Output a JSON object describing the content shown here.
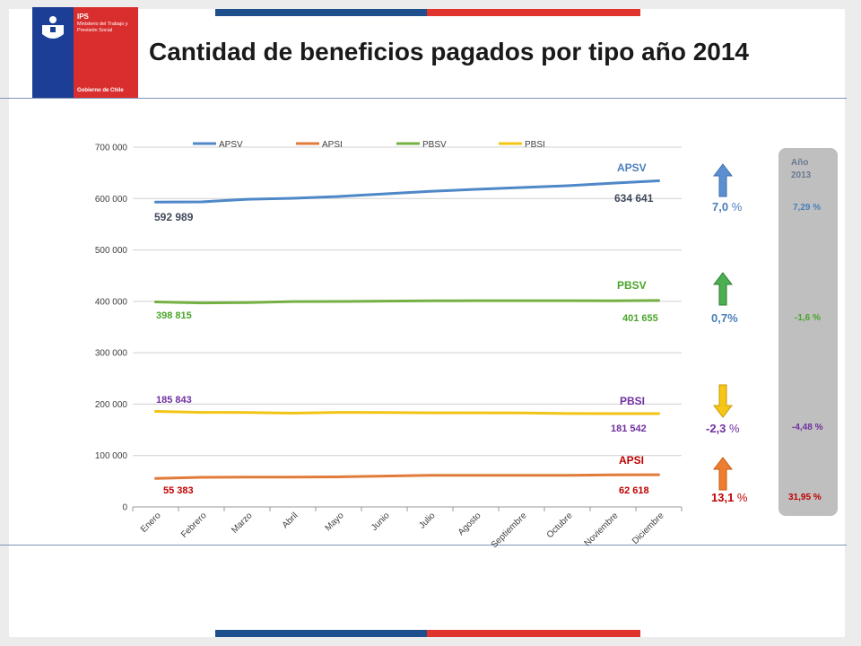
{
  "header": {
    "title": "Cantidad de beneficios pagados por tipo año 2014",
    "logo": {
      "ips": "IPS",
      "ministerio": "Ministerio del Trabajo y Previsión Social",
      "gobierno": "Gobierno de Chile"
    }
  },
  "colors": {
    "APSV": "#4f88c8",
    "APSI": "#e07b39",
    "PBSV": "#74b044",
    "PBSI": "#f2c414",
    "text_APSV": "#4a7ebb",
    "text_PBSV": "#4aa52a",
    "text_PBSI": "#7030a0",
    "text_APSI": "#c00000",
    "text_dark": "#404a5a"
  },
  "chart_data": {
    "type": "line",
    "categories": [
      "Enero",
      "Febrero",
      "Marzo",
      "Abril",
      "Mayo",
      "Junio",
      "Julio",
      "Agosto",
      "Septiembre",
      "Octubre",
      "Noviembre",
      "Diciembre"
    ],
    "yticks": [
      "0",
      "100 000",
      "200 000",
      "300 000",
      "400 000",
      "500 000",
      "600 000",
      "700 000"
    ],
    "ylim": [
      0,
      700000
    ],
    "legend_position": "top",
    "series": [
      {
        "name": "APSV",
        "values": [
          592989,
          593500,
          598500,
          600500,
          604000,
          609000,
          614000,
          618000,
          621500,
          625000,
          630000,
          634641
        ]
      },
      {
        "name": "APSI",
        "values": [
          55383,
          57500,
          58000,
          58000,
          58500,
          60000,
          61500,
          61500,
          61500,
          61500,
          62500,
          62618
        ]
      },
      {
        "name": "PBSV",
        "values": [
          398815,
          397000,
          397500,
          399500,
          399800,
          400500,
          401000,
          401200,
          401200,
          401300,
          401100,
          401655
        ]
      },
      {
        "name": "PBSI",
        "values": [
          185843,
          184000,
          183800,
          182500,
          184000,
          183800,
          183000,
          183000,
          182800,
          181800,
          181500,
          181542
        ]
      }
    ],
    "annotations": {
      "APSV": {
        "label": "APSV",
        "start": "592 989",
        "end": "634 641",
        "pct": "7,0",
        "pct_suffix": " %",
        "prev": "7,29 %"
      },
      "PBSV": {
        "label": "PBSV",
        "start": "398 815",
        "end": "401 655",
        "pct": "0,7%",
        "pct_suffix": "",
        "prev": "-1,6 %"
      },
      "PBSI": {
        "label": "PBSI",
        "start": "185 843",
        "end": "181 542",
        "pct": "-2,3",
        "pct_suffix": " %",
        "prev": "-4,48 %"
      },
      "APSI": {
        "label": "APSI",
        "start": "55 383",
        "end": "62 618",
        "pct": "13,1",
        "pct_suffix": " %",
        "prev": "31,95 %"
      }
    },
    "side_panel_title": "Año 2013"
  }
}
